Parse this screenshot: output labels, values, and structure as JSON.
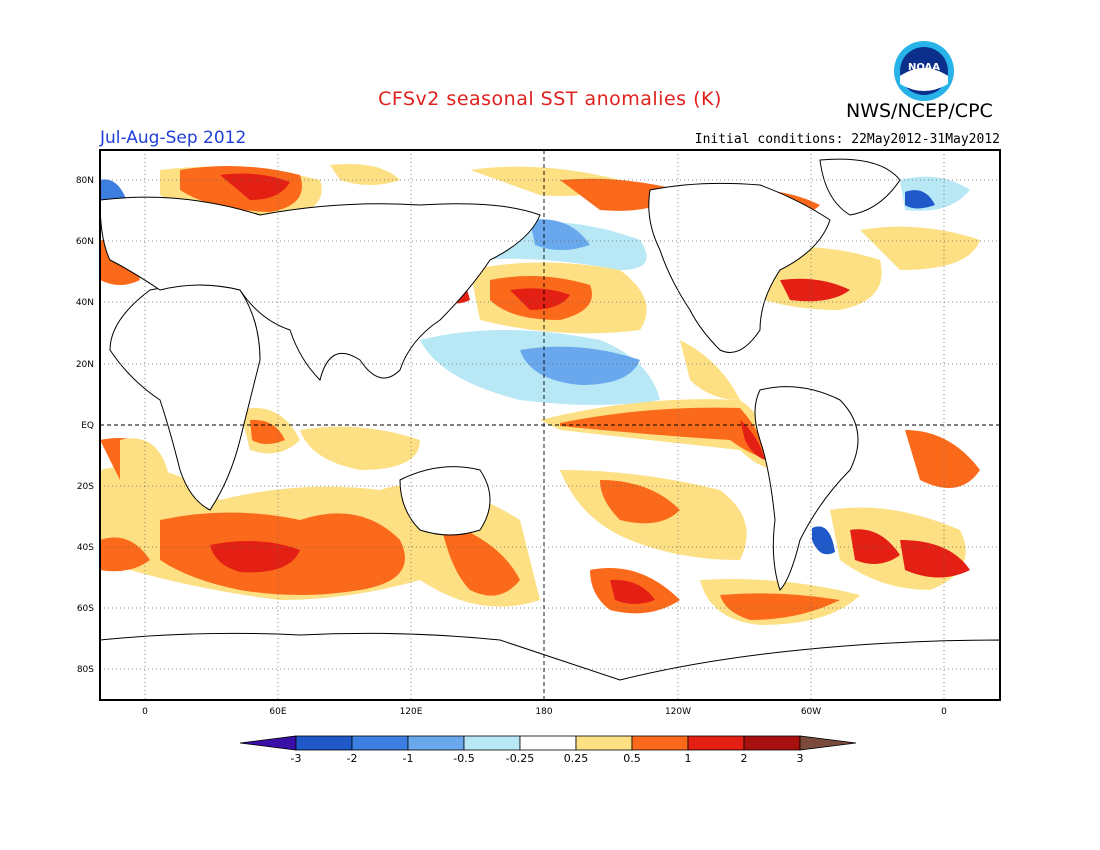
{
  "header": {
    "title": "CFSv2 seasonal SST anomalies (K)",
    "agency": "NWS/NCEP/CPC",
    "logo_text": "NOAA",
    "period": "Jul-Aug-Sep 2012",
    "initial_conditions": "Initial conditions: 22May2012-31May2012"
  },
  "map": {
    "lat_labels": [
      "80N",
      "60N",
      "40N",
      "20N",
      "EQ",
      "20S",
      "40S",
      "60S",
      "80S"
    ],
    "lon_labels": [
      "0",
      "60E",
      "120E",
      "180",
      "120W",
      "60W",
      "0"
    ],
    "land_color": "#ffffff",
    "grid_style": "dotted"
  },
  "colorbar": {
    "labels": [
      "-3",
      "-2",
      "-1",
      "-0.5",
      "-0.25",
      "0.25",
      "0.5",
      "1",
      "2",
      "3"
    ],
    "colors": [
      "#3a0fa8",
      "#1f58c8",
      "#3c7fe0",
      "#6aa8ee",
      "#b8e8f6",
      "#ffffff",
      "#fde084",
      "#fb6a1a",
      "#e42014",
      "#a80f0f",
      "#7a4a3a"
    ]
  },
  "palette": {
    "neg3": "#1f58c8",
    "neg2": "#3c7fe0",
    "neg1": "#6aa8ee",
    "neg05": "#b8e8f6",
    "pos05": "#fde084",
    "pos1": "#fb6a1a",
    "pos2": "#e42014",
    "pos3": "#a80f0f"
  }
}
